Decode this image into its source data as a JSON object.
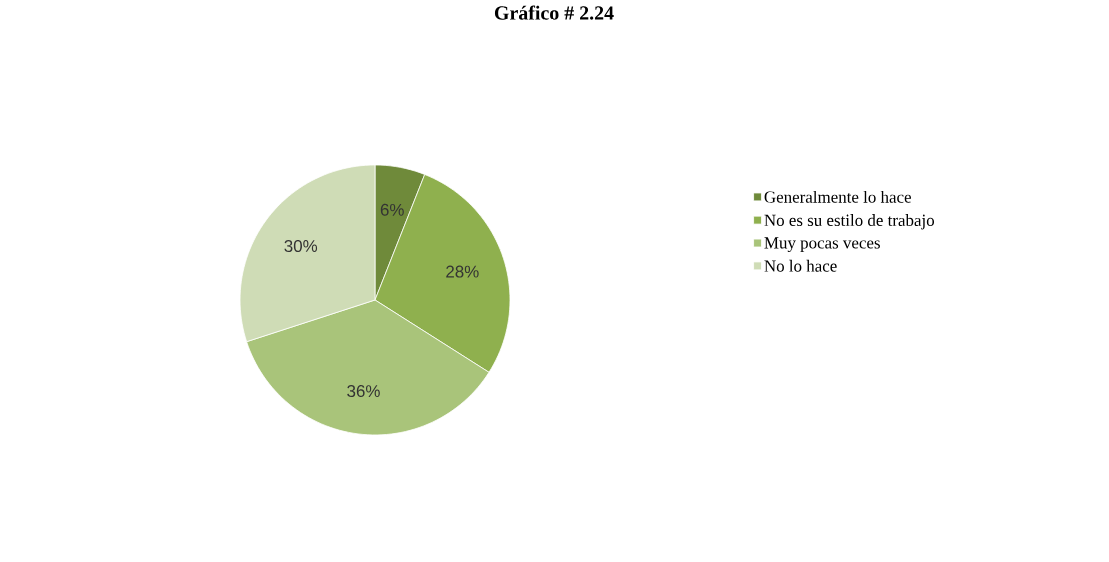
{
  "chart_data": {
    "type": "pie",
    "title": "Gráfico # 2.24",
    "categories": [
      "Generalmente lo hace",
      "No es su estilo de trabajo",
      "Muy pocas veces",
      "No lo hace"
    ],
    "values": [
      6,
      28,
      36,
      30
    ],
    "colors": [
      "#6f8a3a",
      "#8fb04e",
      "#a9c47a",
      "#cfdcb6"
    ],
    "value_labels": [
      "6%",
      "28%",
      "36%",
      "30%"
    ],
    "legend": "right"
  }
}
